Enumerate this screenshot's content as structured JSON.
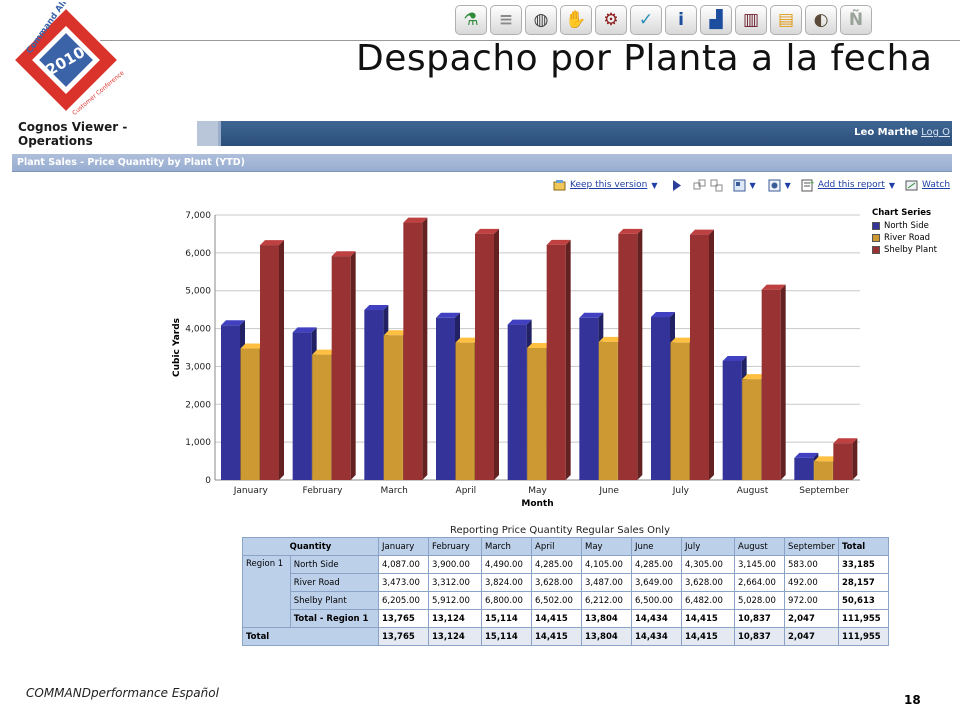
{
  "logo": {
    "line1": "Command Alkon",
    "year": "2010",
    "line2": "Customer Conference",
    "colors": [
      "#d9332c",
      "#3a63a8"
    ]
  },
  "top_icons": [
    {
      "name": "flask-icon",
      "color": "#2f8a3a",
      "glyph": "⚗"
    },
    {
      "name": "road-icon",
      "color": "#8a8a8a",
      "glyph": "≡"
    },
    {
      "name": "globe-icon",
      "color": "#3f3f3f",
      "glyph": "◍"
    },
    {
      "name": "hand-icon",
      "color": "#e06a1b",
      "glyph": "✋"
    },
    {
      "name": "gears-icon",
      "color": "#8c1b1b",
      "glyph": "⚙"
    },
    {
      "name": "checkmark-icon",
      "color": "#2a8fb8",
      "glyph": "✓"
    },
    {
      "name": "info-icon",
      "color": "#1d4e9e",
      "glyph": "i"
    },
    {
      "name": "podium-icon",
      "color": "#1d4e9e",
      "glyph": "▟"
    },
    {
      "name": "panels-icon",
      "color": "#6a1b2a",
      "glyph": "▥"
    },
    {
      "name": "folder-icon",
      "color": "#e09a16",
      "glyph": "▤"
    },
    {
      "name": "cement-mixer-icon",
      "color": "#5a4a3a",
      "glyph": "◐"
    },
    {
      "name": "n-tilde-icon",
      "color": "#9aa39a",
      "glyph": "Ñ"
    }
  ],
  "slide_title": "Despacho por Planta a la fecha",
  "cognos": {
    "app_title": "Cognos Viewer - Operations",
    "user": "Leo Marthe",
    "logoff": "Log O",
    "report_title": "Plant Sales - Price Quantity by Plant (YTD)"
  },
  "toolbar": {
    "keep_version": "Keep this version",
    "add_report": "Add this report",
    "watch": "Watch"
  },
  "chart_data": {
    "type": "bar",
    "categories": [
      "January",
      "February",
      "March",
      "April",
      "May",
      "June",
      "July",
      "August",
      "September"
    ],
    "series": [
      {
        "name": "North Side",
        "color": "#33339a",
        "values": [
          4087,
          3900,
          4490,
          4285,
          4105,
          4285,
          4305,
          3145,
          583
        ]
      },
      {
        "name": "River Road",
        "color": "#cc9933",
        "values": [
          3473,
          3312,
          3824,
          3628,
          3487,
          3649,
          3628,
          2664,
          492
        ]
      },
      {
        "name": "Shelby Plant",
        "color": "#993333",
        "values": [
          6205,
          5912,
          6800,
          6502,
          6212,
          6500,
          6482,
          5028,
          972
        ]
      }
    ],
    "yticks": [
      "0",
      "1,000",
      "2,000",
      "3,000",
      "4,000",
      "5,000",
      "6,000",
      "7,000"
    ],
    "ylim": [
      0,
      7000
    ],
    "xlabel": "Month",
    "ylabel": "Cubic Yards",
    "legend_title": "Chart Series",
    "legend_position": "right",
    "grid": true
  },
  "table": {
    "caption": "Reporting Price Quantity Regular Sales Only",
    "header_corner": "Quantity",
    "columns": [
      "January",
      "February",
      "March",
      "April",
      "May",
      "June",
      "July",
      "August",
      "September",
      "Total"
    ],
    "region": "Region 1",
    "rows": [
      {
        "label": "North Side",
        "values": [
          "4,087.00",
          "3,900.00",
          "4,490.00",
          "4,285.00",
          "4,105.00",
          "4,285.00",
          "4,305.00",
          "3,145.00",
          "583.00",
          "33,185"
        ]
      },
      {
        "label": "River Road",
        "values": [
          "3,473.00",
          "3,312.00",
          "3,824.00",
          "3,628.00",
          "3,487.00",
          "3,649.00",
          "3,628.00",
          "2,664.00",
          "492.00",
          "28,157"
        ]
      },
      {
        "label": "Shelby Plant",
        "values": [
          "6,205.00",
          "5,912.00",
          "6,800.00",
          "6,502.00",
          "6,212.00",
          "6,500.00",
          "6,482.00",
          "5,028.00",
          "972.00",
          "50,613"
        ]
      }
    ],
    "region_total": {
      "label": "Total - Region 1",
      "values": [
        "13,765",
        "13,124",
        "15,114",
        "14,415",
        "13,804",
        "14,434",
        "14,415",
        "10,837",
        "2,047",
        "111,955"
      ]
    },
    "grand_total": {
      "label": "Total",
      "values": [
        "13,765",
        "13,124",
        "15,114",
        "14,415",
        "13,804",
        "14,434",
        "14,415",
        "10,837",
        "2,047",
        "111,955"
      ]
    }
  },
  "footer": "COMMANDperformance Español",
  "page_number": "18"
}
